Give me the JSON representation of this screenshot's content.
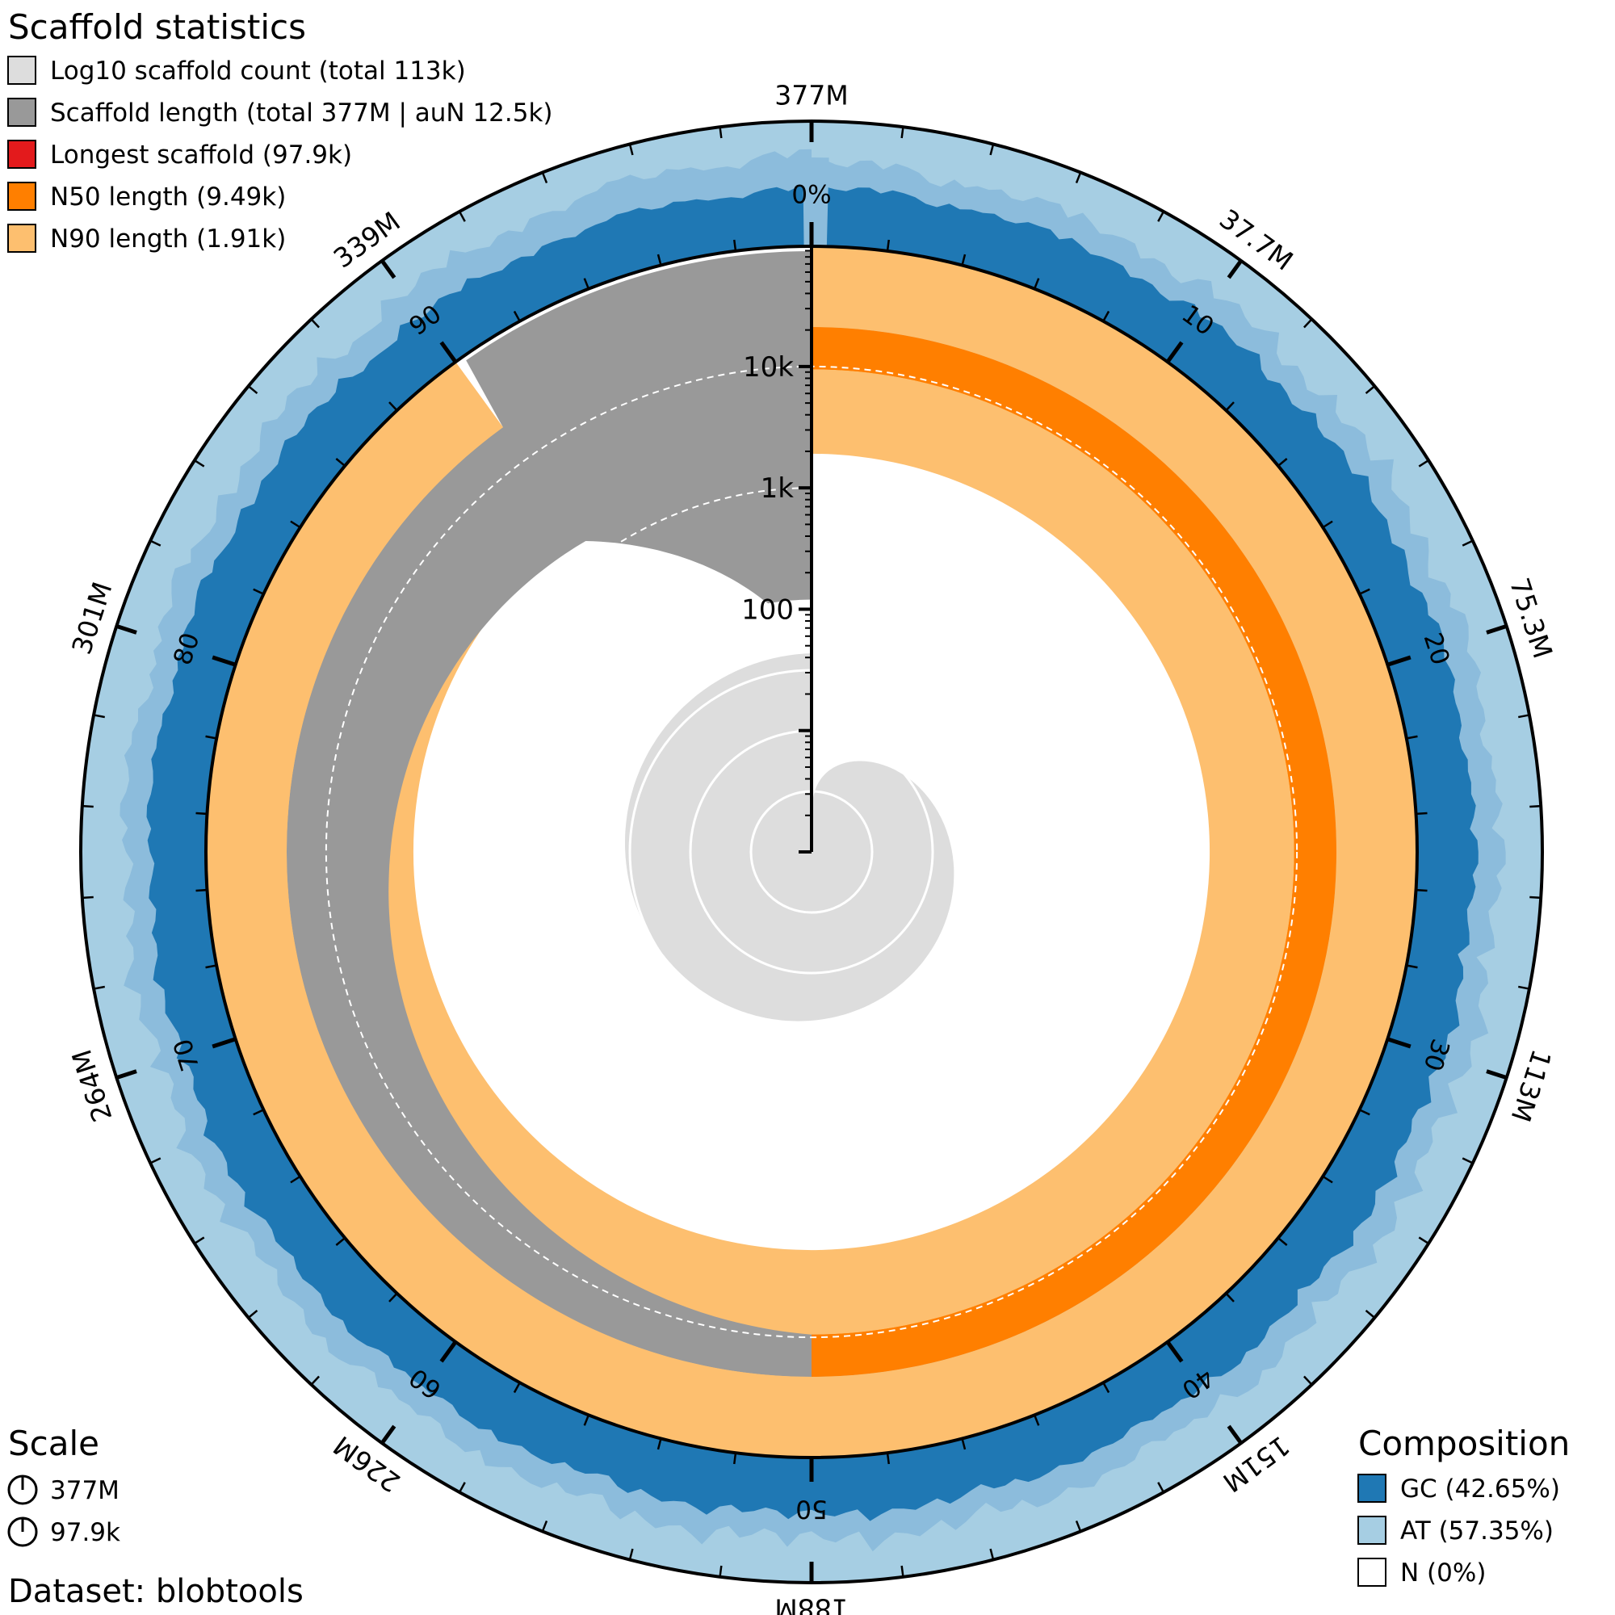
{
  "chart_data": {
    "type": "snail",
    "title": "Scaffold statistics",
    "dataset_label": "Dataset: blobtools",
    "legend": [
      {
        "label": "Log10 scaffold count (total 113k)",
        "color": "#dddddd"
      },
      {
        "label": "Scaffold length (total 377M | auN 12.5k)",
        "color": "#999999"
      },
      {
        "label": "Longest scaffold (97.9k)",
        "color": "#e31a1c"
      },
      {
        "label": "N50 length (9.49k)",
        "color": "#ff7f00"
      },
      {
        "label": "N90 length (1.91k)",
        "color": "#fdbf6f"
      }
    ],
    "total_length": 377,
    "total_count_k": 113,
    "aun_k": 12.5,
    "longest_k": 97.9,
    "n50_k": 9.49,
    "n90_k": 1.91,
    "n50_position_percent": 50,
    "n90_position_percent": 90,
    "outer_ticks": [
      "377M",
      "37.7M",
      "75.3M",
      "113M",
      "151M",
      "188M",
      "226M",
      "264M",
      "301M",
      "339M"
    ],
    "percent_ticks": [
      "0%",
      "10",
      "20",
      "30",
      "40",
      "50",
      "60",
      "70",
      "80",
      "90"
    ],
    "log_scale_ticks": [
      "100",
      "1k",
      "10k"
    ],
    "scale": {
      "title": "Scale",
      "items": [
        "377M",
        "97.9k"
      ]
    },
    "composition": {
      "title": "Composition",
      "items": [
        {
          "label": "GC (42.65%)",
          "color": "#1f78b4"
        },
        {
          "label": "AT (57.35%)",
          "color": "#a6cee3"
        },
        {
          "label": "N (0%)",
          "color": "#ffffff"
        }
      ],
      "gc_percent": 42.65,
      "at_percent": 57.35,
      "n_percent": 0
    },
    "colors": {
      "gc_dark": "#1f78b4",
      "at_light": "#a6cee3",
      "gc_mid": "#8cbcdc",
      "count_fill": "#dddddd",
      "length_fill": "#999999",
      "n50_fill": "#ff7f00",
      "n90_fill": "#fdbf6f"
    }
  }
}
